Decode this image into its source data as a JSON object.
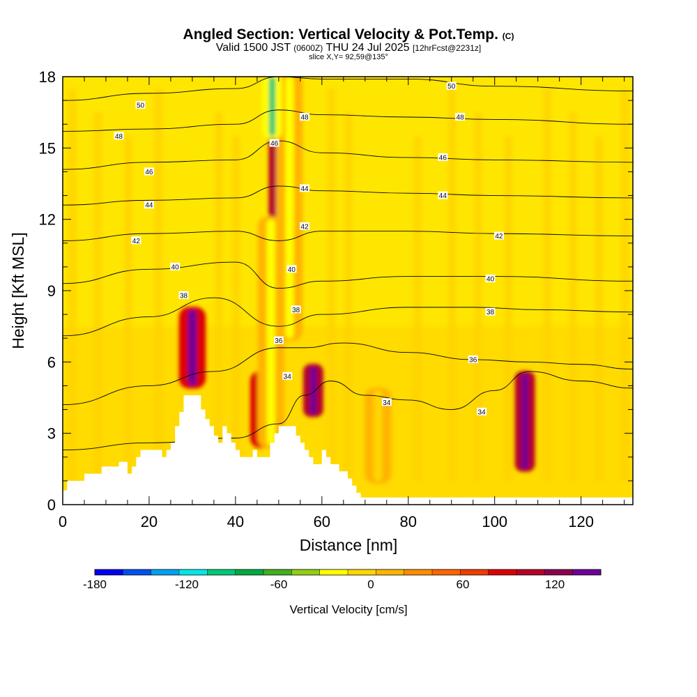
{
  "header": {
    "title": "Angled Section: Vertical Velocity & Pot.Temp.",
    "title_mark": "(C)",
    "valid_a": "Valid 1500 JST",
    "valid_z": "(0600Z)",
    "valid_b": "THU 24 Jul 2025",
    "fcst": "[12hrFcst@2231z]",
    "slice": "slice X,Y= 92,59@135°"
  },
  "chart_data": {
    "type": "heatmap",
    "title": "Angled Section: Vertical Velocity & Pot.Temp.",
    "xlabel": "Distance [nm]",
    "ylabel": "Height [Kft MSL]",
    "xlim": [
      0,
      132
    ],
    "ylim": [
      0,
      18
    ],
    "xticks": [
      0,
      20,
      40,
      60,
      80,
      100,
      120
    ],
    "yticks": [
      0,
      3,
      6,
      9,
      12,
      15,
      18
    ],
    "grid": false,
    "colorbar": {
      "label": "Vertical Velocity [cm/s]",
      "tick_labels": [
        "-180",
        "-120",
        "-60",
        "0",
        "60",
        "120"
      ],
      "tick_values": [
        -180,
        -120,
        -60,
        0,
        60,
        120
      ],
      "min": -180,
      "max": 150,
      "step": 15,
      "colors": [
        "#0000f0",
        "#0050f0",
        "#00a0f0",
        "#00e8e8",
        "#00c878",
        "#00aa40",
        "#40b020",
        "#90d010",
        "#ffff00",
        "#ffd700",
        "#ffb400",
        "#ff8c00",
        "#ff6400",
        "#f03c00",
        "#dc0000",
        "#b4002a",
        "#8c0050",
        "#6e0096"
      ]
    },
    "updrafts": [
      {
        "x": 30,
        "ybot": 5.0,
        "ytop": 8.2,
        "value": 85
      },
      {
        "x": 46.5,
        "ybot": 2.5,
        "ytop": 5.5,
        "value": 90
      },
      {
        "x": 58,
        "ybot": 3.8,
        "ytop": 5.8,
        "value": 100
      },
      {
        "x": 107,
        "ybot": 1.5,
        "ytop": 5.5,
        "value": 120
      },
      {
        "x": 50,
        "ybot": 11.0,
        "ytop": 18.0,
        "value": 120
      }
    ],
    "downdrafts": [
      {
        "x": 48.2,
        "ybot": 2.5,
        "ytop": 12.0,
        "value": -60
      },
      {
        "x": 52.5,
        "ybot": 7.0,
        "ytop": 18.0,
        "value": -55
      },
      {
        "x": 73,
        "ybot": 1.0,
        "ytop": 4.8,
        "value": -35
      },
      {
        "x": 48.5,
        "ybot": 15.5,
        "ytop": 18.0,
        "value": -120
      }
    ],
    "theta_contours": [
      {
        "label": "34",
        "heights": [
          [
            0,
            2.3
          ],
          [
            20,
            2.6
          ],
          [
            40,
            2.8
          ],
          [
            50,
            3.4
          ],
          [
            56,
            4.6
          ],
          [
            62,
            5.2
          ],
          [
            70,
            4.6
          ],
          [
            80,
            4.4
          ],
          [
            90,
            4.0
          ],
          [
            100,
            4.8
          ],
          [
            108,
            5.6
          ],
          [
            120,
            5.2
          ],
          [
            132,
            4.9
          ]
        ]
      },
      {
        "label": "36",
        "heights": [
          [
            0,
            4.2
          ],
          [
            20,
            5.0
          ],
          [
            35,
            5.6
          ],
          [
            50,
            6.6
          ],
          [
            56,
            6.6
          ],
          [
            65,
            6.8
          ],
          [
            80,
            6.4
          ],
          [
            95,
            6.1
          ],
          [
            108,
            6.0
          ],
          [
            120,
            5.9
          ],
          [
            132,
            5.7
          ]
        ]
      },
      {
        "label": "38",
        "heights": [
          [
            0,
            7.1
          ],
          [
            20,
            7.9
          ],
          [
            35,
            8.7
          ],
          [
            50,
            7.5
          ],
          [
            60,
            8.0
          ],
          [
            80,
            8.3
          ],
          [
            95,
            8.3
          ],
          [
            110,
            8.2
          ],
          [
            132,
            8.1
          ]
        ]
      },
      {
        "label": "40",
        "heights": [
          [
            0,
            9.3
          ],
          [
            20,
            9.9
          ],
          [
            40,
            10.2
          ],
          [
            50,
            9.1
          ],
          [
            60,
            9.4
          ],
          [
            80,
            9.6
          ],
          [
            100,
            9.6
          ],
          [
            132,
            9.4
          ]
        ]
      },
      {
        "label": "42",
        "heights": [
          [
            0,
            11.1
          ],
          [
            20,
            11.4
          ],
          [
            40,
            11.5
          ],
          [
            50,
            11.1
          ],
          [
            60,
            11.5
          ],
          [
            80,
            11.5
          ],
          [
            100,
            11.4
          ],
          [
            132,
            11.3
          ]
        ]
      },
      {
        "label": "44",
        "heights": [
          [
            0,
            12.6
          ],
          [
            20,
            12.8
          ],
          [
            40,
            12.9
          ],
          [
            50,
            13.4
          ],
          [
            60,
            13.2
          ],
          [
            80,
            13.1
          ],
          [
            100,
            13.0
          ],
          [
            132,
            12.9
          ]
        ]
      },
      {
        "label": "46",
        "heights": [
          [
            0,
            14.1
          ],
          [
            20,
            14.4
          ],
          [
            40,
            14.5
          ],
          [
            50,
            15.3
          ],
          [
            60,
            14.8
          ],
          [
            80,
            14.6
          ],
          [
            100,
            14.5
          ],
          [
            132,
            14.4
          ]
        ]
      },
      {
        "label": "48",
        "heights": [
          [
            0,
            15.7
          ],
          [
            20,
            15.8
          ],
          [
            40,
            16.0
          ],
          [
            50,
            16.6
          ],
          [
            60,
            16.4
          ],
          [
            80,
            16.3
          ],
          [
            100,
            16.2
          ],
          [
            132,
            16.0
          ]
        ]
      },
      {
        "label": "50",
        "heights": [
          [
            0,
            17.0
          ],
          [
            20,
            17.3
          ],
          [
            40,
            17.5
          ],
          [
            50,
            18.0
          ],
          [
            60,
            17.9
          ],
          [
            80,
            17.9
          ],
          [
            100,
            17.6
          ],
          [
            132,
            17.4
          ]
        ]
      }
    ],
    "terrain": [
      [
        0,
        0.6
      ],
      [
        1,
        1.0
      ],
      [
        5,
        1.3
      ],
      [
        9,
        1.6
      ],
      [
        13,
        1.8
      ],
      [
        15,
        1.3
      ],
      [
        16,
        1.6
      ],
      [
        17,
        2.0
      ],
      [
        18,
        2.3
      ],
      [
        22,
        2.3
      ],
      [
        23,
        2.0
      ],
      [
        24,
        2.3
      ],
      [
        25,
        2.6
      ],
      [
        26,
        3.3
      ],
      [
        27,
        3.9
      ],
      [
        28,
        4.6
      ],
      [
        31,
        4.6
      ],
      [
        32,
        4.0
      ],
      [
        33,
        3.6
      ],
      [
        34,
        3.3
      ],
      [
        35,
        2.9
      ],
      [
        36,
        2.6
      ],
      [
        37,
        3.3
      ],
      [
        38,
        3.0
      ],
      [
        39,
        2.6
      ],
      [
        40,
        2.3
      ],
      [
        41,
        2.0
      ],
      [
        43,
        2.0
      ],
      [
        44,
        2.3
      ],
      [
        45,
        2.0
      ],
      [
        47,
        2.0
      ],
      [
        48,
        2.6
      ],
      [
        49,
        3.0
      ],
      [
        50,
        3.3
      ],
      [
        53,
        3.3
      ],
      [
        54,
        2.9
      ],
      [
        55,
        2.6
      ],
      [
        56,
        2.3
      ],
      [
        57,
        2.0
      ],
      [
        58,
        1.7
      ],
      [
        60,
        2.3
      ],
      [
        61,
        2.0
      ],
      [
        62,
        1.7
      ],
      [
        64,
        1.4
      ],
      [
        66,
        1.1
      ],
      [
        67,
        0.8
      ],
      [
        68,
        0.5
      ],
      [
        69,
        0.3
      ],
      [
        132,
        0.3
      ]
    ],
    "contour_labels": [
      {
        "text": "50",
        "x": 18,
        "y": 16.8
      },
      {
        "text": "48",
        "x": 13,
        "y": 15.5
      },
      {
        "text": "46",
        "x": 20,
        "y": 14.0
      },
      {
        "text": "44",
        "x": 20,
        "y": 12.6
      },
      {
        "text": "42",
        "x": 17,
        "y": 11.1
      },
      {
        "text": "40",
        "x": 26,
        "y": 10.0
      },
      {
        "text": "38",
        "x": 28,
        "y": 8.8
      },
      {
        "text": "46",
        "x": 49,
        "y": 15.2
      },
      {
        "text": "48",
        "x": 56,
        "y": 16.3
      },
      {
        "text": "44",
        "x": 56,
        "y": 13.3
      },
      {
        "text": "42",
        "x": 56,
        "y": 11.7
      },
      {
        "text": "40",
        "x": 53,
        "y": 9.9
      },
      {
        "text": "38",
        "x": 54,
        "y": 8.2
      },
      {
        "text": "36",
        "x": 50,
        "y": 6.9
      },
      {
        "text": "34",
        "x": 52,
        "y": 5.4
      },
      {
        "text": "50",
        "x": 90,
        "y": 17.6
      },
      {
        "text": "48",
        "x": 92,
        "y": 16.3
      },
      {
        "text": "46",
        "x": 88,
        "y": 14.6
      },
      {
        "text": "44",
        "x": 88,
        "y": 13.0
      },
      {
        "text": "42",
        "x": 101,
        "y": 11.3
      },
      {
        "text": "40",
        "x": 99,
        "y": 9.5
      },
      {
        "text": "38",
        "x": 99,
        "y": 8.1
      },
      {
        "text": "36",
        "x": 95,
        "y": 6.1
      },
      {
        "text": "34",
        "x": 75,
        "y": 4.3
      },
      {
        "text": "34",
        "x": 97,
        "y": 3.9
      }
    ]
  }
}
